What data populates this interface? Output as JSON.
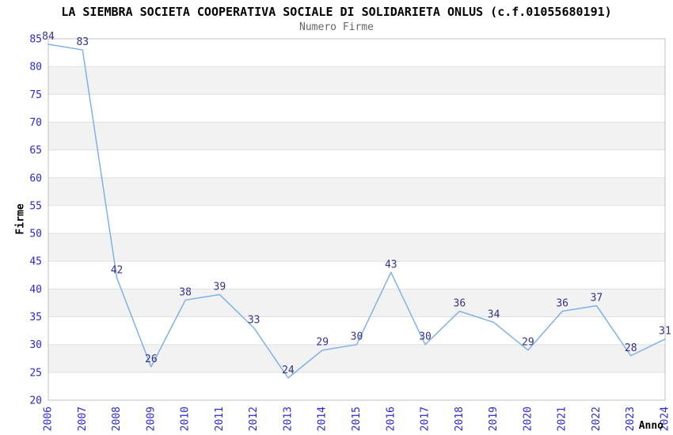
{
  "chart_data": {
    "type": "line",
    "title": "LA SIEMBRA SOCIETA COOPERATIVA SOCIALE DI SOLIDARIETA ONLUS (c.f.01055680191)",
    "subtitle": "Numero Firme",
    "xlabel": "Anno",
    "ylabel": "Firme",
    "categories": [
      "2006",
      "2007",
      "2008",
      "2009",
      "2010",
      "2011",
      "2012",
      "2013",
      "2014",
      "2015",
      "2016",
      "2017",
      "2018",
      "2019",
      "2020",
      "2021",
      "2022",
      "2023",
      "2024"
    ],
    "values": [
      84,
      83,
      42,
      26,
      38,
      39,
      33,
      24,
      29,
      30,
      43,
      30,
      36,
      34,
      29,
      36,
      37,
      28,
      31
    ],
    "ylim": [
      20,
      85
    ],
    "ytick_step": 5,
    "grid": true,
    "legend": "none",
    "point_labels_visible": true,
    "colors": {
      "line": "#7eb2e8",
      "tick_labels": "#2a2acc",
      "point_labels": "#333388",
      "band": "#f2f2f2",
      "gridline": "#e0e0e0",
      "border": "#c0c0c0",
      "title": "#000000",
      "subtitle": "#666666",
      "axis_titles": "#000000",
      "background": "#ffffff"
    }
  }
}
